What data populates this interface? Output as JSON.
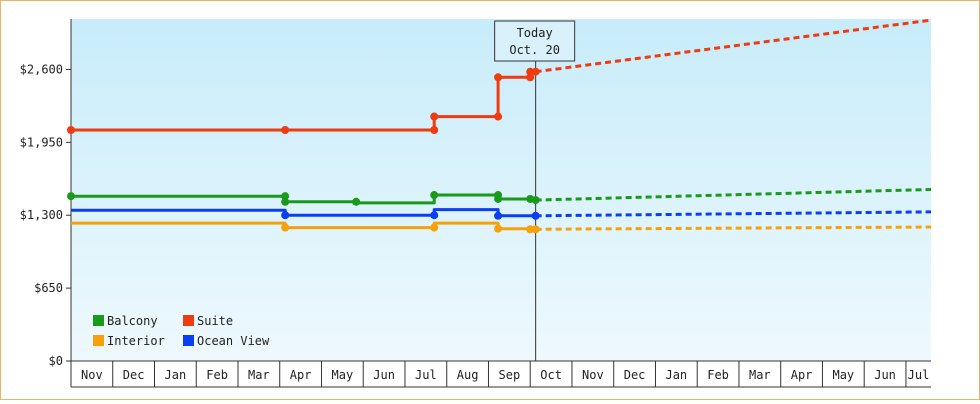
{
  "chart_data": {
    "type": "line",
    "title": "",
    "xlabel": "",
    "ylabel": "",
    "ylim": [
      0,
      3050
    ],
    "y_ticks": [
      "$0",
      "$650",
      "$1,300",
      "$1,950",
      "$2,600"
    ],
    "y_tick_values": [
      0,
      650,
      1300,
      1950,
      2600
    ],
    "x_tick_labels": [
      "Nov",
      "Dec",
      "Jan",
      "Feb",
      "Mar",
      "Apr",
      "May",
      "Jun",
      "Jul",
      "Aug",
      "Sep",
      "Oct",
      "Nov",
      "Dec",
      "Jan",
      "Feb",
      "Mar",
      "Apr",
      "May",
      "Jun",
      "Jul"
    ],
    "x_range_months": [
      0,
      20.6
    ],
    "today": {
      "label_line1": "Today",
      "label_line2": "Oct. 20",
      "x": 11.13
    },
    "legend_placement": "bottom-left",
    "grid": false,
    "colors": {
      "plot_bg_top": "#c8ecfa",
      "plot_bg_bottom": "#eef9fe",
      "axis": "#333333",
      "frame_border": "#e8b36a"
    },
    "series": [
      {
        "name": "Balcony",
        "color": "#1a9a1a",
        "points": [
          [
            0,
            1470
          ],
          [
            5.13,
            1470
          ],
          [
            5.13,
            1420
          ],
          [
            6.83,
            1420
          ],
          [
            6.83,
            1410
          ],
          [
            8.7,
            1410
          ],
          [
            8.7,
            1480
          ],
          [
            10.23,
            1480
          ],
          [
            10.23,
            1445
          ],
          [
            11.0,
            1445
          ],
          [
            11.0,
            1435
          ],
          [
            11.13,
            1435
          ]
        ],
        "markers": [
          [
            0,
            1470
          ],
          [
            5.13,
            1470
          ],
          [
            5.13,
            1420
          ],
          [
            6.83,
            1420
          ],
          [
            8.7,
            1480
          ],
          [
            10.23,
            1480
          ],
          [
            10.23,
            1445
          ],
          [
            11.0,
            1445
          ],
          [
            11.13,
            1435
          ]
        ],
        "forecast": [
          [
            11.13,
            1435
          ],
          [
            20.6,
            1530
          ]
        ]
      },
      {
        "name": "Suite",
        "color": "#f03a10",
        "points": [
          [
            0,
            2060
          ],
          [
            5.13,
            2060
          ],
          [
            8.7,
            2060
          ],
          [
            8.7,
            2180
          ],
          [
            10.23,
            2180
          ],
          [
            10.23,
            2530
          ],
          [
            11.0,
            2530
          ],
          [
            11.0,
            2580
          ],
          [
            11.13,
            2580
          ]
        ],
        "markers": [
          [
            0,
            2060
          ],
          [
            5.13,
            2060
          ],
          [
            8.7,
            2060
          ],
          [
            8.7,
            2180
          ],
          [
            10.23,
            2180
          ],
          [
            10.23,
            2530
          ],
          [
            11.0,
            2530
          ],
          [
            11.0,
            2580
          ],
          [
            11.13,
            2580
          ]
        ],
        "forecast": [
          [
            11.13,
            2580
          ],
          [
            20.6,
            3040
          ]
        ]
      },
      {
        "name": "Interior",
        "color": "#f7a10a",
        "points": [
          [
            0,
            1230
          ],
          [
            5.13,
            1230
          ],
          [
            5.13,
            1190
          ],
          [
            8.7,
            1190
          ],
          [
            8.7,
            1230
          ],
          [
            10.23,
            1230
          ],
          [
            10.23,
            1180
          ],
          [
            11.0,
            1180
          ],
          [
            11.0,
            1175
          ],
          [
            11.13,
            1175
          ]
        ],
        "markers": [
          [
            5.13,
            1190
          ],
          [
            8.7,
            1190
          ],
          [
            10.23,
            1180
          ],
          [
            11.0,
            1175
          ],
          [
            11.13,
            1175
          ]
        ],
        "forecast": [
          [
            11.13,
            1175
          ],
          [
            20.6,
            1195
          ]
        ]
      },
      {
        "name": "Ocean View",
        "color": "#0a3ef5",
        "points": [
          [
            0,
            1345
          ],
          [
            5.13,
            1345
          ],
          [
            5.13,
            1300
          ],
          [
            8.7,
            1300
          ],
          [
            8.7,
            1350
          ],
          [
            10.23,
            1350
          ],
          [
            10.23,
            1295
          ],
          [
            11.13,
            1295
          ]
        ],
        "markers": [
          [
            5.13,
            1300
          ],
          [
            8.7,
            1300
          ],
          [
            10.23,
            1295
          ],
          [
            11.13,
            1295
          ]
        ],
        "forecast": [
          [
            11.13,
            1295
          ],
          [
            20.6,
            1330
          ]
        ]
      }
    ]
  }
}
